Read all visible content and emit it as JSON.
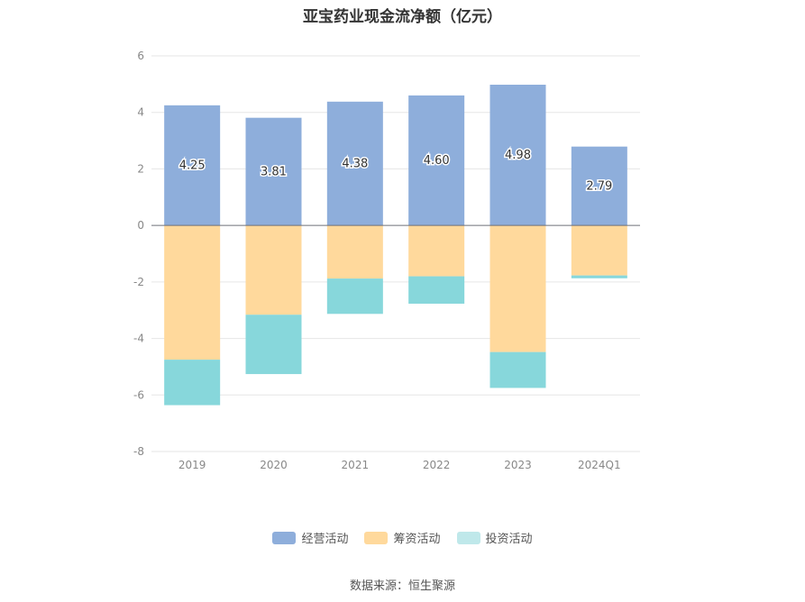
{
  "chart_data": {
    "type": "bar",
    "stacked": true,
    "title": "亚宝药业现金流净额（亿元）",
    "categories": [
      "2019",
      "2020",
      "2021",
      "2022",
      "2023",
      "2024Q1"
    ],
    "series": [
      {
        "name": "经营活动",
        "color": "#8eaedb",
        "values": [
          4.25,
          3.81,
          4.38,
          4.6,
          4.98,
          2.79
        ],
        "labels": [
          "4.25",
          "3.81",
          "4.38",
          "4.60",
          "4.98",
          "2.79"
        ]
      },
      {
        "name": "筹资活动",
        "color": "#ffd99c",
        "values": [
          -4.75,
          -3.16,
          -1.88,
          -1.8,
          -4.48,
          -1.77
        ]
      },
      {
        "name": "投资活动",
        "color": "#87d7db",
        "values": [
          -1.61,
          -2.1,
          -1.25,
          -0.97,
          -1.27,
          -0.1
        ]
      }
    ],
    "ylim": [
      -8,
      6
    ],
    "yticks": [
      6,
      4,
      2,
      0,
      -2,
      -4,
      -6,
      -8
    ],
    "grid": true,
    "legend_position": "bottom"
  },
  "legend": [
    {
      "label": "经营活动",
      "color": "#8eaedb"
    },
    {
      "label": "筹资活动",
      "color": "#ffd99c"
    },
    {
      "label": "投资活动",
      "color": "#bfe8ea"
    }
  ],
  "source": "数据来源：恒生聚源"
}
